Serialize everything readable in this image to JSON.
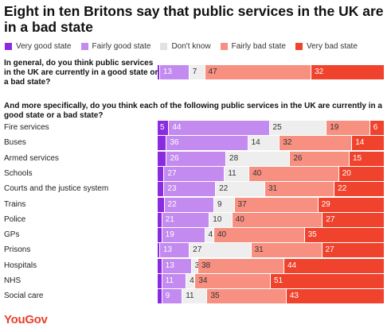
{
  "title": "Eight in ten Britons say that public services in the UK are in a bad state",
  "logo": "YouGov",
  "colors": {
    "very_good": "#8a2be2",
    "fairly_good": "#c38af0",
    "dont_know": "#eeeeee",
    "fairly_bad": "#f79080",
    "very_bad": "#f0432e"
  },
  "chart_data": [
    {
      "type": "bar",
      "orientation": "horizontal",
      "stacked": true,
      "title": "In general, do you think public services in the UK are currently in a good state or a bad state?",
      "categories": [
        ""
      ],
      "series": [
        {
          "name": "Very good state",
          "values": [
            1
          ]
        },
        {
          "name": "Fairly good state",
          "values": [
            13
          ]
        },
        {
          "name": "Don't know",
          "values": [
            7
          ]
        },
        {
          "name": "Fairly bad state",
          "values": [
            47
          ]
        },
        {
          "name": "Very bad state",
          "values": [
            32
          ]
        }
      ],
      "legend": "top"
    },
    {
      "type": "bar",
      "orientation": "horizontal",
      "stacked": true,
      "title": "And more specifically, do you think each of the following public services in the UK are currently in a good state or a bad state?",
      "categories": [
        "Fire services",
        "Buses",
        "Armed services",
        "Schools",
        "Courts and the justice system",
        "Trains",
        "Police",
        "GPs",
        "Prisons",
        "Hospitals",
        "NHS",
        "Social care"
      ],
      "series": [
        {
          "name": "Very good state",
          "values": [
            5,
            4,
            4,
            3,
            3,
            3,
            2,
            2,
            1,
            2,
            2,
            2
          ]
        },
        {
          "name": "Fairly good state",
          "values": [
            44,
            36,
            26,
            27,
            23,
            22,
            21,
            19,
            13,
            13,
            11,
            9
          ]
        },
        {
          "name": "Don't know",
          "values": [
            25,
            14,
            28,
            11,
            22,
            9,
            10,
            4,
            27,
            3,
            4,
            11
          ]
        },
        {
          "name": "Fairly bad state",
          "values": [
            19,
            32,
            26,
            40,
            31,
            37,
            40,
            40,
            31,
            38,
            34,
            35
          ]
        },
        {
          "name": "Very bad state",
          "values": [
            6,
            14,
            15,
            20,
            22,
            29,
            27,
            35,
            27,
            44,
            51,
            43
          ]
        }
      ],
      "hidden_labels": [
        0,
        0
      ],
      "legend": "top"
    }
  ]
}
